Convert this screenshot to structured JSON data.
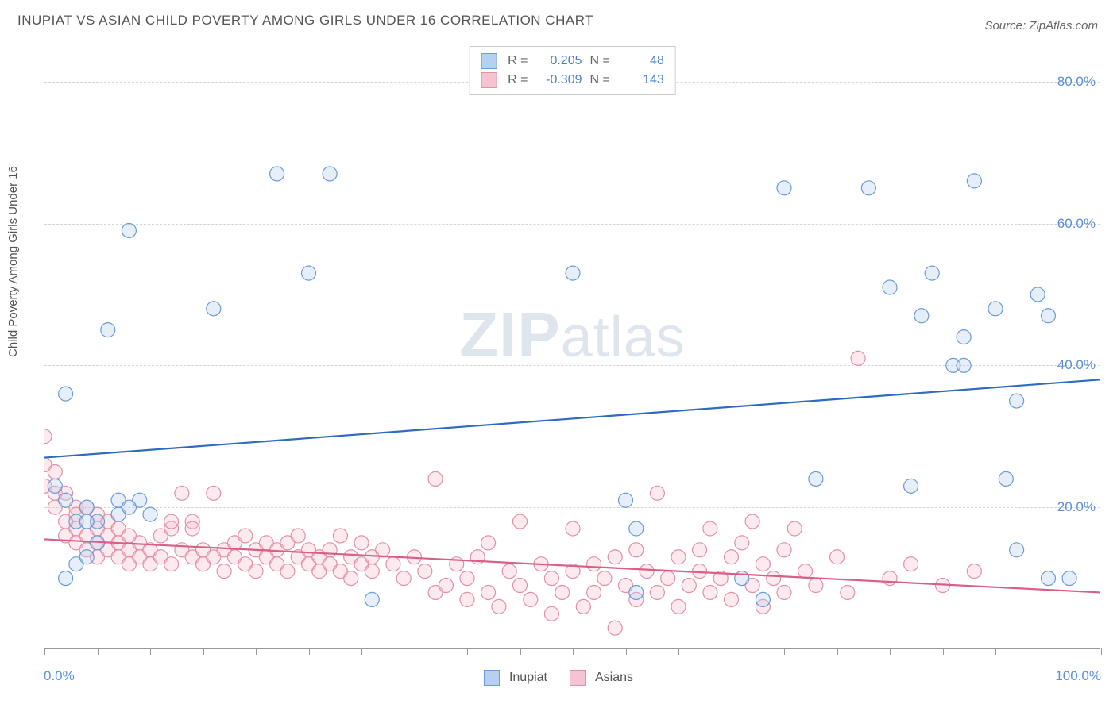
{
  "title": "INUPIAT VS ASIAN CHILD POVERTY AMONG GIRLS UNDER 16 CORRELATION CHART",
  "source_label": "Source: ZipAtlas.com",
  "ylabel": "Child Poverty Among Girls Under 16",
  "watermark": {
    "bold": "ZIP",
    "rest": "atlas"
  },
  "chart": {
    "type": "scatter",
    "background_color": "#ffffff",
    "grid_color": "#d5d5d5",
    "axis_color": "#999999",
    "tick_label_color": "#5b8fd6",
    "xlim": [
      0,
      100
    ],
    "ylim": [
      0,
      85
    ],
    "xticks_positions": [
      0,
      5,
      10,
      15,
      20,
      25,
      30,
      35,
      40,
      45,
      50,
      55,
      60,
      65,
      70,
      75,
      80,
      85,
      90,
      95,
      100
    ],
    "yticks": [
      {
        "value": 20,
        "label": "20.0%"
      },
      {
        "value": 40,
        "label": "40.0%"
      },
      {
        "value": 60,
        "label": "60.0%"
      },
      {
        "value": 80,
        "label": "80.0%"
      }
    ],
    "x_axis_labels": {
      "min": "0.0%",
      "max": "100.0%"
    },
    "point_radius": 9,
    "point_fill_opacity": 0.35,
    "point_stroke_width": 1.2,
    "line_width": 2.2,
    "series": [
      {
        "name": "Inupiat",
        "color_fill": "#b8d0ef",
        "color_stroke": "#6b9bd8",
        "trend_color": "#2f6bc0",
        "R": "0.205",
        "N": "48",
        "trend": {
          "x1": 0,
          "y1": 27,
          "x2": 100,
          "y2": 38
        },
        "points": [
          [
            2,
            36
          ],
          [
            3,
            12
          ],
          [
            4,
            13
          ],
          [
            6,
            45
          ],
          [
            8,
            59
          ],
          [
            4,
            20
          ],
          [
            5,
            18
          ],
          [
            7,
            19
          ],
          [
            9,
            21
          ],
          [
            10,
            19
          ],
          [
            16,
            48
          ],
          [
            22,
            67
          ],
          [
            27,
            67
          ],
          [
            25,
            53
          ],
          [
            31,
            7
          ],
          [
            50,
            53
          ],
          [
            55,
            21
          ],
          [
            56,
            17
          ],
          [
            56,
            8
          ],
          [
            66,
            10
          ],
          [
            68,
            7
          ],
          [
            70,
            65
          ],
          [
            73,
            24
          ],
          [
            78,
            65
          ],
          [
            80,
            51
          ],
          [
            83,
            47
          ],
          [
            82,
            23
          ],
          [
            84,
            53
          ],
          [
            87,
            44
          ],
          [
            88,
            66
          ],
          [
            86,
            40
          ],
          [
            87,
            40
          ],
          [
            90,
            48
          ],
          [
            91,
            24
          ],
          [
            92,
            14
          ],
          [
            94,
            50
          ],
          [
            95,
            47
          ],
          [
            92,
            35
          ],
          [
            95,
            10
          ],
          [
            97,
            10
          ],
          [
            2,
            21
          ],
          [
            3,
            18
          ],
          [
            1,
            23
          ],
          [
            2,
            10
          ],
          [
            4,
            18
          ],
          [
            5,
            15
          ],
          [
            7,
            21
          ],
          [
            8,
            20
          ]
        ]
      },
      {
        "name": "Asians",
        "color_fill": "#f5c4d2",
        "color_stroke": "#e38fa8",
        "trend_color": "#d85f86",
        "R": "-0.309",
        "N": "143",
        "trend": {
          "x1": 0,
          "y1": 15.5,
          "x2": 100,
          "y2": 8
        },
        "points": [
          [
            0,
            26
          ],
          [
            0,
            23
          ],
          [
            0,
            30
          ],
          [
            1,
            22
          ],
          [
            1,
            25
          ],
          [
            1,
            20
          ],
          [
            2,
            18
          ],
          [
            2,
            22
          ],
          [
            2,
            16
          ],
          [
            3,
            20
          ],
          [
            3,
            15
          ],
          [
            3,
            17
          ],
          [
            4,
            16
          ],
          [
            4,
            14
          ],
          [
            5,
            15
          ],
          [
            5,
            17
          ],
          [
            5,
            13
          ],
          [
            6,
            14
          ],
          [
            6,
            16
          ],
          [
            7,
            13
          ],
          [
            7,
            15
          ],
          [
            8,
            14
          ],
          [
            8,
            12
          ],
          [
            9,
            13
          ],
          [
            9,
            15
          ],
          [
            10,
            12
          ],
          [
            10,
            14
          ],
          [
            11,
            13
          ],
          [
            11,
            16
          ],
          [
            12,
            12
          ],
          [
            12,
            17
          ],
          [
            13,
            14
          ],
          [
            13,
            22
          ],
          [
            14,
            13
          ],
          [
            14,
            18
          ],
          [
            15,
            12
          ],
          [
            15,
            14
          ],
          [
            16,
            22
          ],
          [
            16,
            13
          ],
          [
            17,
            14
          ],
          [
            17,
            11
          ],
          [
            18,
            15
          ],
          [
            18,
            13
          ],
          [
            19,
            12
          ],
          [
            19,
            16
          ],
          [
            20,
            14
          ],
          [
            20,
            11
          ],
          [
            21,
            13
          ],
          [
            21,
            15
          ],
          [
            22,
            12
          ],
          [
            22,
            14
          ],
          [
            23,
            11
          ],
          [
            23,
            15
          ],
          [
            24,
            13
          ],
          [
            24,
            16
          ],
          [
            25,
            12
          ],
          [
            25,
            14
          ],
          [
            26,
            11
          ],
          [
            26,
            13
          ],
          [
            27,
            12
          ],
          [
            27,
            14
          ],
          [
            28,
            16
          ],
          [
            28,
            11
          ],
          [
            29,
            13
          ],
          [
            29,
            10
          ],
          [
            30,
            15
          ],
          [
            30,
            12
          ],
          [
            31,
            13
          ],
          [
            31,
            11
          ],
          [
            32,
            14
          ],
          [
            33,
            12
          ],
          [
            34,
            10
          ],
          [
            35,
            13
          ],
          [
            36,
            11
          ],
          [
            37,
            8
          ],
          [
            37,
            24
          ],
          [
            38,
            9
          ],
          [
            39,
            12
          ],
          [
            40,
            10
          ],
          [
            40,
            7
          ],
          [
            41,
            13
          ],
          [
            42,
            8
          ],
          [
            42,
            15
          ],
          [
            43,
            6
          ],
          [
            44,
            11
          ],
          [
            45,
            9
          ],
          [
            45,
            18
          ],
          [
            46,
            7
          ],
          [
            47,
            12
          ],
          [
            48,
            10
          ],
          [
            48,
            5
          ],
          [
            49,
            8
          ],
          [
            50,
            11
          ],
          [
            50,
            17
          ],
          [
            51,
            6
          ],
          [
            52,
            12
          ],
          [
            52,
            8
          ],
          [
            53,
            10
          ],
          [
            54,
            13
          ],
          [
            54,
            3
          ],
          [
            55,
            9
          ],
          [
            56,
            14
          ],
          [
            56,
            7
          ],
          [
            57,
            11
          ],
          [
            58,
            8
          ],
          [
            58,
            22
          ],
          [
            59,
            10
          ],
          [
            60,
            13
          ],
          [
            60,
            6
          ],
          [
            61,
            9
          ],
          [
            62,
            11
          ],
          [
            62,
            14
          ],
          [
            63,
            8
          ],
          [
            63,
            17
          ],
          [
            64,
            10
          ],
          [
            65,
            13
          ],
          [
            65,
            7
          ],
          [
            66,
            15
          ],
          [
            67,
            9
          ],
          [
            67,
            18
          ],
          [
            68,
            12
          ],
          [
            68,
            6
          ],
          [
            69,
            10
          ],
          [
            70,
            14
          ],
          [
            70,
            8
          ],
          [
            71,
            17
          ],
          [
            72,
            11
          ],
          [
            73,
            9
          ],
          [
            75,
            13
          ],
          [
            76,
            8
          ],
          [
            77,
            41
          ],
          [
            80,
            10
          ],
          [
            82,
            12
          ],
          [
            85,
            9
          ],
          [
            88,
            11
          ],
          [
            5,
            19
          ],
          [
            6,
            18
          ],
          [
            7,
            17
          ],
          [
            8,
            16
          ],
          [
            4,
            20
          ],
          [
            3,
            19
          ],
          [
            12,
            18
          ],
          [
            14,
            17
          ]
        ]
      }
    ]
  },
  "legend_top": {
    "R_label": "R =",
    "N_label": "N ="
  },
  "legend_bottom": {
    "items": [
      "Inupiat",
      "Asians"
    ]
  }
}
